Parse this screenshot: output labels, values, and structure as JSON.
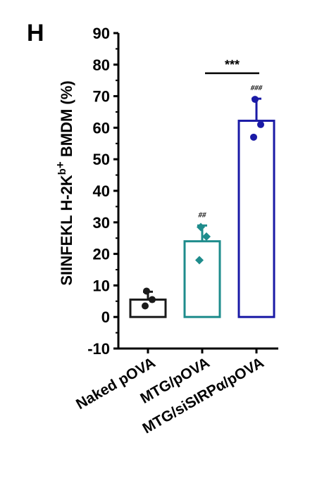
{
  "panel_label": "H",
  "chart_data": {
    "type": "bar",
    "title": "",
    "ylabel": "SIINFEKL H-2K",
    "ylabel_sup_b": "b",
    "ylabel_sup_plus": "+",
    "ylabel_rest": " BMDM (%)",
    "xlabel": "",
    "ylim": [
      -10,
      90
    ],
    "yticks": [
      -10,
      0,
      10,
      20,
      30,
      40,
      50,
      60,
      70,
      80,
      90
    ],
    "categories": [
      "Naked pOVA",
      "MTG/pOVA",
      "MTG/siSIRPα/pOVA"
    ],
    "values": [
      5.5,
      24,
      62.2
    ],
    "errors": [
      2.5,
      5,
      7
    ],
    "points": [
      [
        8.2,
        5.5,
        3.5
      ],
      [
        28.5,
        25.5,
        18
      ],
      [
        69,
        61,
        57
      ]
    ],
    "bar_colors": [
      "#1a1a1a",
      "#1e8c8c",
      "#1a1aa6"
    ],
    "point_markers": [
      "circle",
      "diamond",
      "circle"
    ],
    "annotations": [
      "",
      "##",
      "###"
    ],
    "comparison": {
      "from": 1,
      "to": 2,
      "label": "***"
    },
    "grid": false,
    "legend": "none"
  }
}
